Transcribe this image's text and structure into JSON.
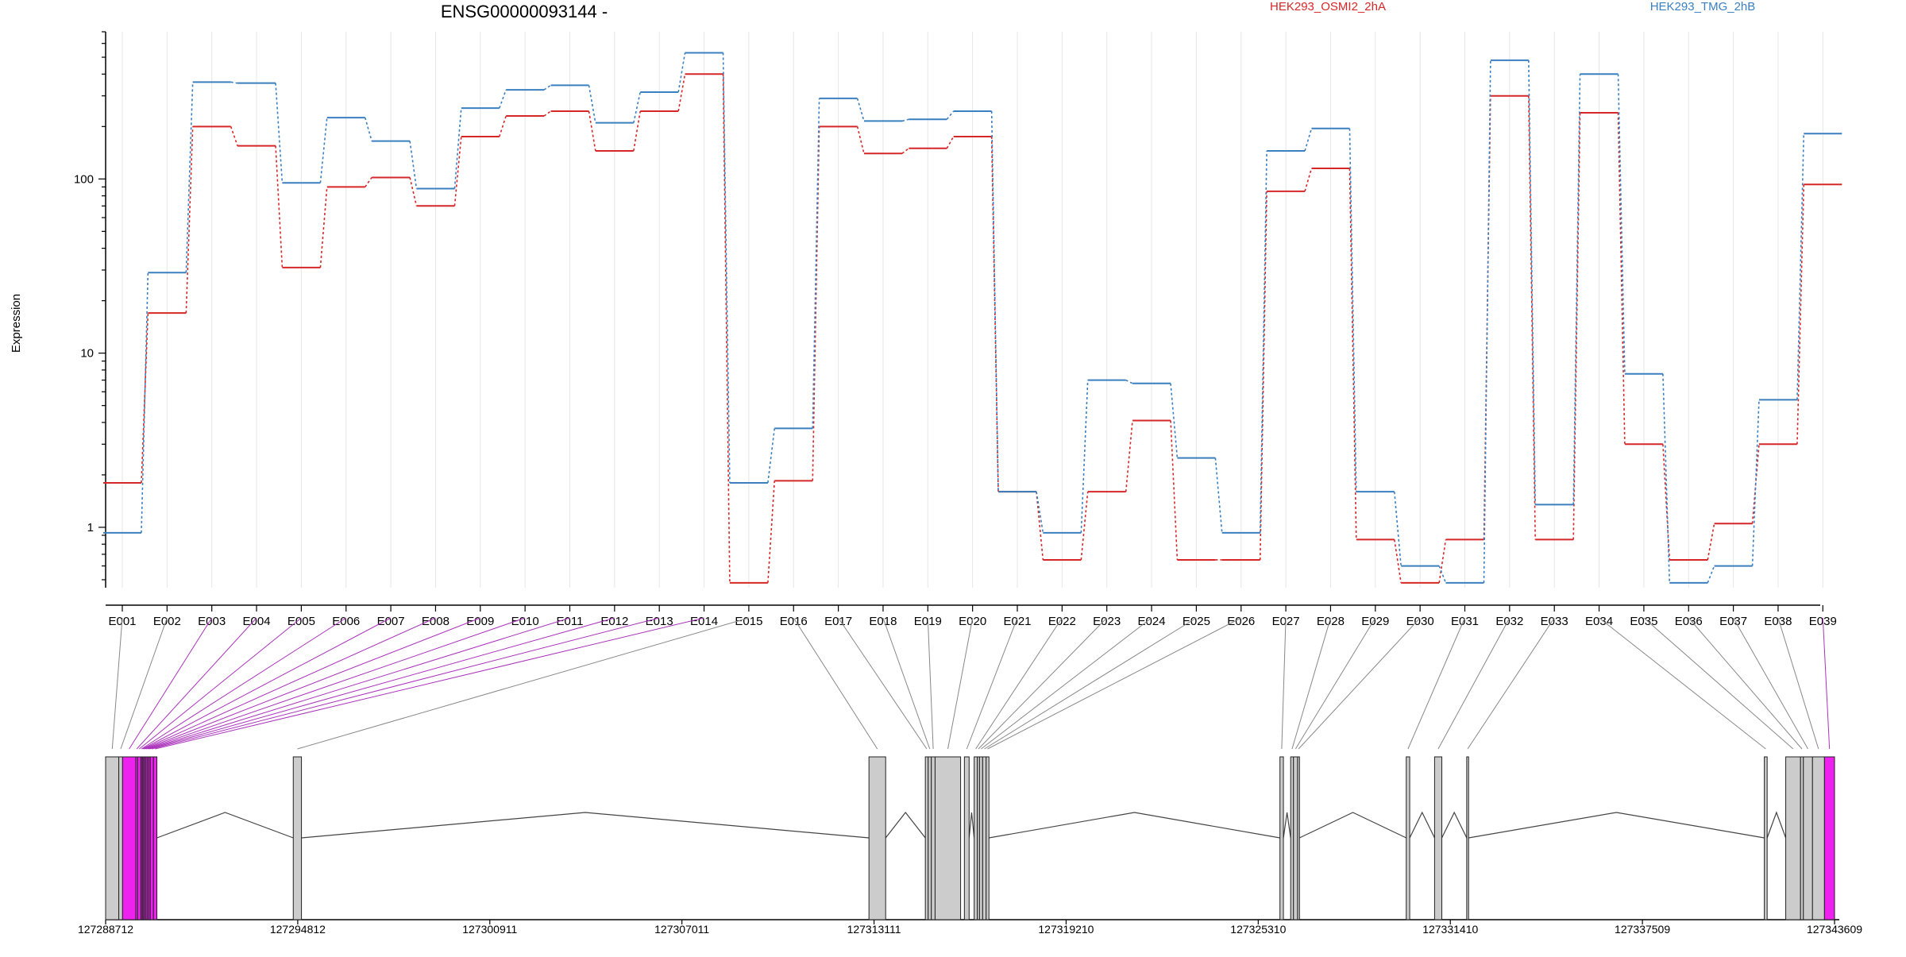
{
  "chart_data": {
    "type": "line",
    "title": "ENSG00000093144 -",
    "ylabel": "Expression",
    "y_scale": "log",
    "ylim": [
      0.45,
      700
    ],
    "y_ticks": [
      {
        "value": 1,
        "label": "1"
      },
      {
        "value": 10,
        "label": "10"
      },
      {
        "value": 100,
        "label": "100"
      }
    ],
    "categories": [
      "E001",
      "E002",
      "E003",
      "E004",
      "E005",
      "E006",
      "E007",
      "E008",
      "E009",
      "E010",
      "E011",
      "E012",
      "E013",
      "E014",
      "E015",
      "E016",
      "E017",
      "E018",
      "E019",
      "E020",
      "E021",
      "E022",
      "E023",
      "E024",
      "E025",
      "E026",
      "E027",
      "E028",
      "E029",
      "E030",
      "E031",
      "E032",
      "E033",
      "E034",
      "E035",
      "E036",
      "E037",
      "E038",
      "E039"
    ],
    "series": [
      {
        "name": "HEK293_OSMI2_2hA",
        "color": "#d62728",
        "values": [
          1.8,
          17,
          200,
          155,
          31,
          90,
          102,
          70,
          175,
          230,
          245,
          145,
          245,
          400,
          0.48,
          1.85,
          200,
          140,
          150,
          175,
          1.6,
          0.65,
          1.6,
          4.1,
          0.65,
          0.65,
          85,
          115,
          0.85,
          0.48,
          0.85,
          300,
          0.85,
          240,
          3.0,
          0.65,
          1.05,
          3.0,
          93
        ]
      },
      {
        "name": "HEK293_TMG_2hB",
        "color": "#3a7fbf",
        "values": [
          0.93,
          29,
          360,
          355,
          95,
          225,
          165,
          88,
          255,
          325,
          345,
          210,
          315,
          530,
          1.8,
          3.7,
          290,
          215,
          220,
          245,
          1.6,
          0.93,
          7.0,
          6.7,
          2.5,
          0.93,
          145,
          195,
          1.6,
          0.6,
          0.48,
          480,
          1.35,
          400,
          7.6,
          0.48,
          0.6,
          5.4,
          182
        ]
      }
    ],
    "gene_model": {
      "coordinates": [
        "127288712",
        "127294812",
        "127300911",
        "127307011",
        "127313111",
        "127319210",
        "127325310",
        "127331410",
        "127337509",
        "127343609"
      ],
      "start": 127288712,
      "end": 127343609,
      "exons": [
        {
          "id": "E001",
          "start": 127288712,
          "end": 127289130,
          "highlight": false
        },
        {
          "id": "E002",
          "start": 127289130,
          "end": 127289250,
          "highlight": false
        },
        {
          "id": "E003",
          "start": 127289250,
          "end": 127289670,
          "highlight": true
        },
        {
          "id": "E004",
          "start": 127289670,
          "end": 127289730,
          "highlight": true
        },
        {
          "id": "E005",
          "start": 127289730,
          "end": 127289830,
          "highlight": true
        },
        {
          "id": "E006",
          "start": 127289830,
          "end": 127289870,
          "highlight": true
        },
        {
          "id": "E007",
          "start": 127289870,
          "end": 127289900,
          "highlight": true
        },
        {
          "id": "E008",
          "start": 127289900,
          "end": 127289940,
          "highlight": true
        },
        {
          "id": "E009",
          "start": 127289940,
          "end": 127289980,
          "highlight": true
        },
        {
          "id": "E010",
          "start": 127289980,
          "end": 127290030,
          "highlight": true
        },
        {
          "id": "E011",
          "start": 127290030,
          "end": 127290080,
          "highlight": true
        },
        {
          "id": "E012",
          "start": 127290080,
          "end": 127290130,
          "highlight": true
        },
        {
          "id": "E013",
          "start": 127290130,
          "end": 127290230,
          "highlight": true
        },
        {
          "id": "E014",
          "start": 127290230,
          "end": 127290340,
          "highlight": true
        },
        {
          "id": "E015",
          "start": 127294670,
          "end": 127294930,
          "highlight": false
        },
        {
          "id": "E016",
          "start": 127312950,
          "end": 127313480,
          "highlight": false
        },
        {
          "id": "E017",
          "start": 127314740,
          "end": 127314830,
          "highlight": false
        },
        {
          "id": "E018",
          "start": 127314830,
          "end": 127314930,
          "highlight": false
        },
        {
          "id": "E019",
          "start": 127314930,
          "end": 127315050,
          "highlight": false
        },
        {
          "id": "E020",
          "start": 127315050,
          "end": 127315860,
          "highlight": false
        },
        {
          "id": "E021",
          "start": 127315980,
          "end": 127316130,
          "highlight": false
        },
        {
          "id": "E022",
          "start": 127316290,
          "end": 127316390,
          "highlight": false
        },
        {
          "id": "E023",
          "start": 127316390,
          "end": 127316460,
          "highlight": false
        },
        {
          "id": "E024",
          "start": 127316460,
          "end": 127316560,
          "highlight": false
        },
        {
          "id": "E025",
          "start": 127316560,
          "end": 127316670,
          "highlight": false
        },
        {
          "id": "E026",
          "start": 127316670,
          "end": 127316760,
          "highlight": false
        },
        {
          "id": "E027",
          "start": 127326000,
          "end": 127326110,
          "highlight": false
        },
        {
          "id": "E028",
          "start": 127326340,
          "end": 127326430,
          "highlight": false
        },
        {
          "id": "E029",
          "start": 127326430,
          "end": 127326560,
          "highlight": false
        },
        {
          "id": "E030",
          "start": 127326560,
          "end": 127326620,
          "highlight": false
        },
        {
          "id": "E031",
          "start": 127330010,
          "end": 127330120,
          "highlight": false
        },
        {
          "id": "E032",
          "start": 127330910,
          "end": 127331140,
          "highlight": false
        },
        {
          "id": "E033",
          "start": 127331930,
          "end": 127331990,
          "highlight": false
        },
        {
          "id": "E034",
          "start": 127341380,
          "end": 127341470,
          "highlight": false
        },
        {
          "id": "E035",
          "start": 127342060,
          "end": 127342530,
          "highlight": false
        },
        {
          "id": "E036",
          "start": 127342530,
          "end": 127342620,
          "highlight": false
        },
        {
          "id": "E037",
          "start": 127342620,
          "end": 127342910,
          "highlight": false
        },
        {
          "id": "E038",
          "start": 127342910,
          "end": 127343290,
          "highlight": false
        },
        {
          "id": "E039",
          "start": 127343290,
          "end": 127343609,
          "highlight": true
        }
      ]
    }
  },
  "colors": {
    "exon_fill": "#cccccc",
    "exon_highlight": "#ee22ee",
    "connector": "#888888",
    "connector_highlight": "#aa33bb",
    "intron": "#444444",
    "grid": "#e6e6e6"
  }
}
